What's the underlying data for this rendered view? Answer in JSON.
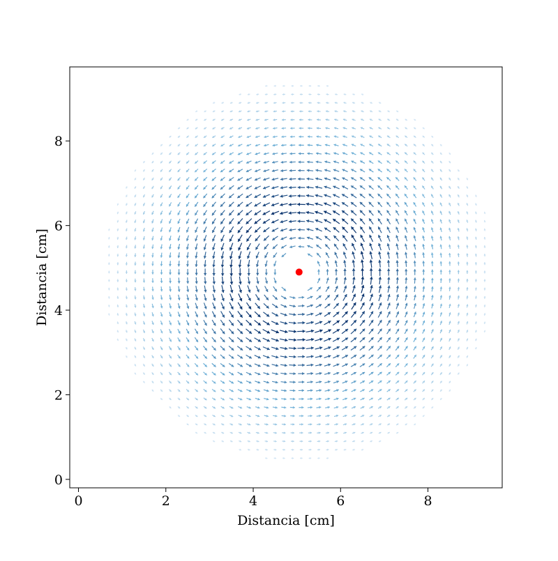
{
  "chart_data": {
    "type": "quiver",
    "title": "",
    "xlabel": "Distancia [cm]",
    "ylabel": "Distancia [cm]",
    "xlim": [
      -0.2,
      9.7
    ],
    "ylim": [
      -0.2,
      9.75
    ],
    "x_ticks": [
      0,
      2,
      4,
      6,
      8
    ],
    "y_ticks": [
      0,
      2,
      4,
      6,
      8
    ],
    "x_tick_labels": [
      "0",
      "2",
      "4",
      "6",
      "8"
    ],
    "y_tick_labels": [
      "0",
      "2",
      "4",
      "6",
      "8"
    ],
    "grid": false,
    "vector_field": {
      "center": [
        5.05,
        4.9
      ],
      "rotation": "counterclockwise",
      "grid_spacing": 0.2,
      "field_radius": 4.6,
      "core_radius": 0.45,
      "peak_radius": 1.5,
      "colormap": "Blues"
    },
    "marker": {
      "x": 5.05,
      "y": 4.9,
      "color": "#ff0000"
    }
  }
}
